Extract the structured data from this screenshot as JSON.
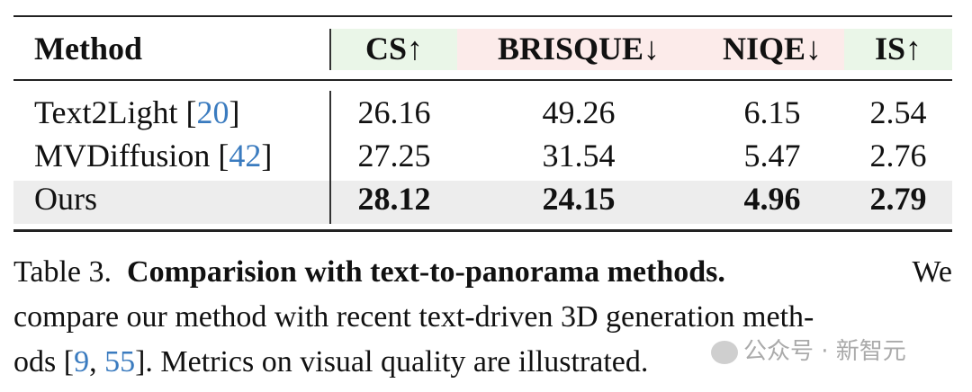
{
  "colors": {
    "higher_better_bg": "#eaf6e8",
    "lower_better_bg": "#fcebea",
    "ours_row_bg": "#ededed",
    "ref_link": "#3a7bbf"
  },
  "table": {
    "headers": [
      "Method",
      "CS↑",
      "BRISQUE↓",
      "NIQE↓",
      "IS↑"
    ],
    "rows": [
      {
        "method": "Text2Light",
        "ref": "20",
        "values": [
          "26.16",
          "49.26",
          "6.15",
          "2.54"
        ]
      },
      {
        "method": "MVDiffusion",
        "ref": "42",
        "values": [
          "27.25",
          "31.54",
          "5.47",
          "2.76"
        ]
      },
      {
        "method": "Ours",
        "values": [
          "28.12",
          "24.15",
          "4.96",
          "2.79"
        ]
      }
    ]
  },
  "caption": {
    "label": "Table 3.",
    "title": "Comparision with text-to-panorama methods.",
    "line1_end": "We",
    "line2": "compare our method with recent text-driven 3D generation meth-",
    "line3_start": "ods [",
    "refs": [
      "9",
      "55"
    ],
    "line3_end": "]. Metrics on visual quality are illustrated."
  },
  "watermark": "公众号 · 新智元"
}
